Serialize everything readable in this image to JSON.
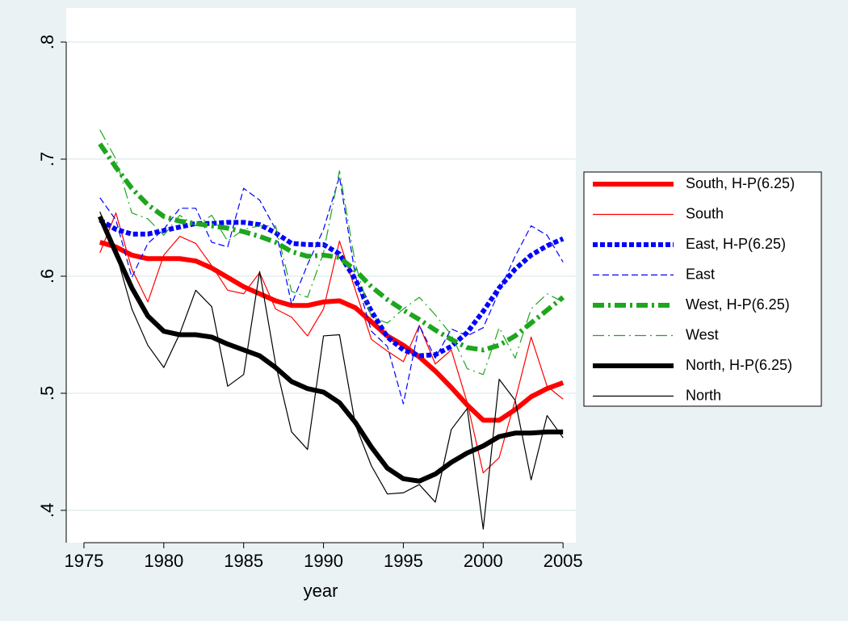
{
  "chart_data": {
    "type": "line",
    "xlabel": "year",
    "x": [
      1976,
      1977,
      1978,
      1979,
      1980,
      1981,
      1982,
      1983,
      1984,
      1985,
      1986,
      1987,
      1988,
      1989,
      1990,
      1991,
      1992,
      1993,
      1994,
      1995,
      1996,
      1997,
      1998,
      1999,
      2000,
      2001,
      2002,
      2003,
      2004,
      2005
    ],
    "xlim": [
      1973.89,
      2005.8
    ],
    "xticks": [
      1975,
      1980,
      1985,
      1990,
      1995,
      2000,
      2005
    ],
    "ylim": [
      0.3724,
      0.829
    ],
    "yticks": [
      {
        "value": 0.4,
        "label": ".4"
      },
      {
        "value": 0.5,
        "label": ".5"
      },
      {
        "value": 0.6,
        "label": ".6"
      },
      {
        "value": 0.7,
        "label": ".7"
      },
      {
        "value": 0.8,
        "label": ".8"
      }
    ],
    "grid": true,
    "legend": "right",
    "series": [
      {
        "name": "South, H-P(6.25)",
        "color": "#ff0000",
        "line": "solid",
        "weight": "thick",
        "values": [
          0.629,
          0.625,
          0.618,
          0.615,
          0.615,
          0.615,
          0.613,
          0.607,
          0.599,
          0.591,
          0.585,
          0.579,
          0.575,
          0.575,
          0.578,
          0.579,
          0.573,
          0.561,
          0.549,
          0.541,
          0.531,
          0.519,
          0.505,
          0.49,
          0.477,
          0.477,
          0.486,
          0.497,
          0.504,
          0.509
        ]
      },
      {
        "name": "South",
        "color": "#ff0000",
        "line": "solid",
        "weight": "thin",
        "values": [
          0.62,
          0.654,
          0.606,
          0.578,
          0.618,
          0.634,
          0.628,
          0.609,
          0.588,
          0.585,
          0.603,
          0.572,
          0.565,
          0.549,
          0.572,
          0.63,
          0.588,
          0.546,
          0.536,
          0.527,
          0.558,
          0.525,
          0.537,
          0.492,
          0.432,
          0.445,
          0.494,
          0.548,
          0.506,
          0.495
        ]
      },
      {
        "name": "East, H-P(6.25)",
        "color": "#0000ff",
        "line": "dash",
        "weight": "thick",
        "values": [
          0.648,
          0.64,
          0.636,
          0.636,
          0.639,
          0.642,
          0.645,
          0.645,
          0.646,
          0.646,
          0.644,
          0.637,
          0.628,
          0.627,
          0.627,
          0.619,
          0.597,
          0.57,
          0.548,
          0.537,
          0.532,
          0.533,
          0.54,
          0.552,
          0.57,
          0.59,
          0.606,
          0.618,
          0.626,
          0.632
        ]
      },
      {
        "name": "East",
        "color": "#0000ff",
        "line": "dash",
        "weight": "thin",
        "values": [
          0.667,
          0.648,
          0.599,
          0.628,
          0.64,
          0.658,
          0.658,
          0.629,
          0.625,
          0.675,
          0.665,
          0.64,
          0.576,
          0.61,
          0.64,
          0.685,
          0.6,
          0.553,
          0.54,
          0.491,
          0.558,
          0.53,
          0.555,
          0.549,
          0.556,
          0.587,
          0.617,
          0.643,
          0.635,
          0.612
        ]
      },
      {
        "name": "West, H-P(6.25)",
        "color": "#1ea61e",
        "line": "dashdot",
        "weight": "thick",
        "values": [
          0.713,
          0.693,
          0.675,
          0.661,
          0.651,
          0.647,
          0.645,
          0.643,
          0.641,
          0.638,
          0.634,
          0.629,
          0.621,
          0.617,
          0.618,
          0.616,
          0.605,
          0.591,
          0.58,
          0.571,
          0.563,
          0.554,
          0.546,
          0.539,
          0.537,
          0.541,
          0.549,
          0.56,
          0.571,
          0.582
        ]
      },
      {
        "name": "West",
        "color": "#1ea61e",
        "line": "dashdot",
        "weight": "thin",
        "values": [
          0.725,
          0.7,
          0.654,
          0.649,
          0.635,
          0.652,
          0.643,
          0.652,
          0.63,
          0.64,
          0.643,
          0.643,
          0.587,
          0.582,
          0.62,
          0.69,
          0.61,
          0.565,
          0.56,
          0.572,
          0.582,
          0.567,
          0.55,
          0.521,
          0.516,
          0.556,
          0.53,
          0.572,
          0.585,
          0.578
        ]
      },
      {
        "name": "North, H-P(6.25)",
        "color": "#000000",
        "line": "solid",
        "weight": "thick",
        "values": [
          0.651,
          0.62,
          0.59,
          0.566,
          0.553,
          0.55,
          0.55,
          0.548,
          0.542,
          0.537,
          0.532,
          0.522,
          0.51,
          0.504,
          0.501,
          0.492,
          0.475,
          0.454,
          0.436,
          0.427,
          0.425,
          0.431,
          0.441,
          0.449,
          0.455,
          0.463,
          0.466,
          0.466,
          0.467,
          0.467
        ]
      },
      {
        "name": "North",
        "color": "#000000",
        "line": "solid",
        "weight": "thin",
        "values": [
          0.655,
          0.62,
          0.572,
          0.541,
          0.522,
          0.551,
          0.588,
          0.574,
          0.506,
          0.516,
          0.604,
          0.525,
          0.467,
          0.452,
          0.549,
          0.55,
          0.473,
          0.438,
          0.414,
          0.415,
          0.422,
          0.407,
          0.469,
          0.487,
          0.384,
          0.512,
          0.494,
          0.426,
          0.481,
          0.462
        ]
      }
    ]
  }
}
